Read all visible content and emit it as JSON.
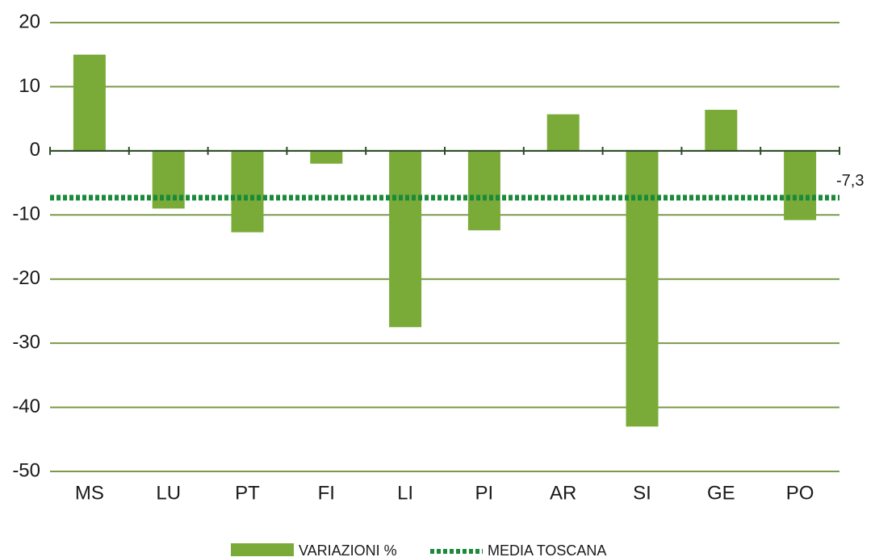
{
  "chart_data": {
    "type": "bar",
    "categories": [
      "MS",
      "LU",
      "PT",
      "FI",
      "LI",
      "PI",
      "AR",
      "SI",
      "GE",
      "PO"
    ],
    "series": [
      {
        "name": "VARIAZIONI %",
        "color": "#7aab38",
        "values": [
          15,
          -9,
          -12.7,
          -2,
          -27.5,
          -12.4,
          5.7,
          -43,
          6.4,
          -10.8
        ]
      }
    ],
    "reference": {
      "name": "MEDIA TOSCANA",
      "value": -7.3,
      "label": "-7,3",
      "color": "#1a8a3a"
    },
    "ylim": [
      -50,
      20
    ],
    "yticks": [
      -50,
      -40,
      -30,
      -20,
      -10,
      0,
      10,
      20
    ],
    "grid": true
  }
}
